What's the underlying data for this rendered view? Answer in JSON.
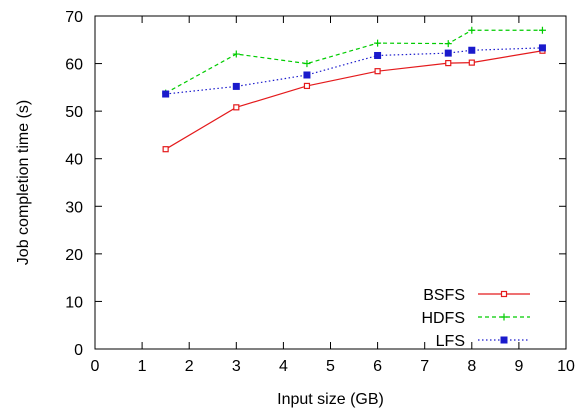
{
  "chart_data": {
    "type": "line",
    "xlabel": "Input size (GB)",
    "ylabel": "Job completion time (s)",
    "xlim": [
      0,
      10
    ],
    "ylim": [
      0,
      70
    ],
    "x_ticks": [
      "0",
      "1",
      "2",
      "3",
      "4",
      "5",
      "6",
      "7",
      "8",
      "9",
      "10"
    ],
    "y_ticks": [
      "0",
      "10",
      "20",
      "30",
      "40",
      "50",
      "60",
      "70"
    ],
    "grid": false,
    "legend_position": "bottom-right",
    "series": [
      {
        "name": "BSFS",
        "color": "#e41a1c",
        "marker": "open-square",
        "line_style": "solid",
        "x": [
          1.5,
          3,
          4.5,
          6,
          7.5,
          8,
          9.5
        ],
        "y": [
          42,
          50.8,
          55.3,
          58.4,
          60.1,
          60.2,
          62.7
        ]
      },
      {
        "name": "HDFS",
        "color": "#00cc00",
        "marker": "plus",
        "line_style": "dashed",
        "x": [
          1.5,
          3,
          4.5,
          6,
          7.5,
          8,
          9.5
        ],
        "y": [
          53.8,
          62,
          60,
          64.3,
          64.2,
          67,
          67
        ]
      },
      {
        "name": "LFS",
        "color": "#1a1acc",
        "marker": "filled-square",
        "line_style": "dotted",
        "x": [
          1.5,
          3,
          4.5,
          6,
          7.5,
          8,
          9.5
        ],
        "y": [
          53.6,
          55.2,
          57.6,
          61.7,
          62.2,
          62.8,
          63.3
        ]
      }
    ]
  }
}
